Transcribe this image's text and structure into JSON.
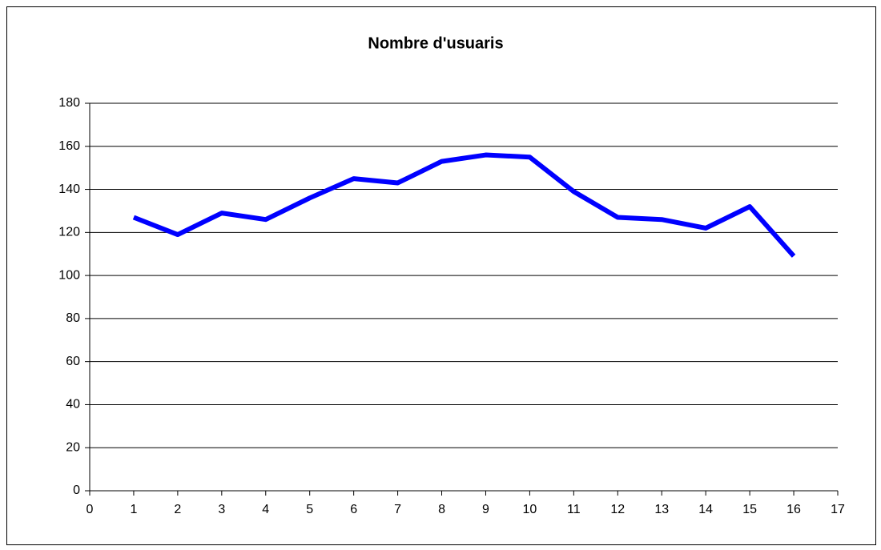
{
  "chart_data": {
    "type": "line",
    "title": "Nombre d'usuaris",
    "x": [
      1,
      2,
      3,
      4,
      5,
      6,
      7,
      8,
      9,
      10,
      11,
      12,
      13,
      14,
      15,
      16
    ],
    "series": [
      {
        "name": "Nombre d'usuaris",
        "color": "#0000ff",
        "values": [
          127,
          119,
          129,
          126,
          136,
          145,
          143,
          153,
          156,
          155,
          139,
          127,
          126,
          122,
          132,
          109
        ]
      }
    ],
    "xlim": [
      0,
      17
    ],
    "xticks": [
      0,
      1,
      2,
      3,
      4,
      5,
      6,
      7,
      8,
      9,
      10,
      11,
      12,
      13,
      14,
      15,
      16,
      17
    ],
    "ylim": [
      0,
      180
    ],
    "yticks": [
      0,
      20,
      40,
      60,
      80,
      100,
      120,
      140,
      160,
      180
    ],
    "grid": true,
    "legend": false
  }
}
